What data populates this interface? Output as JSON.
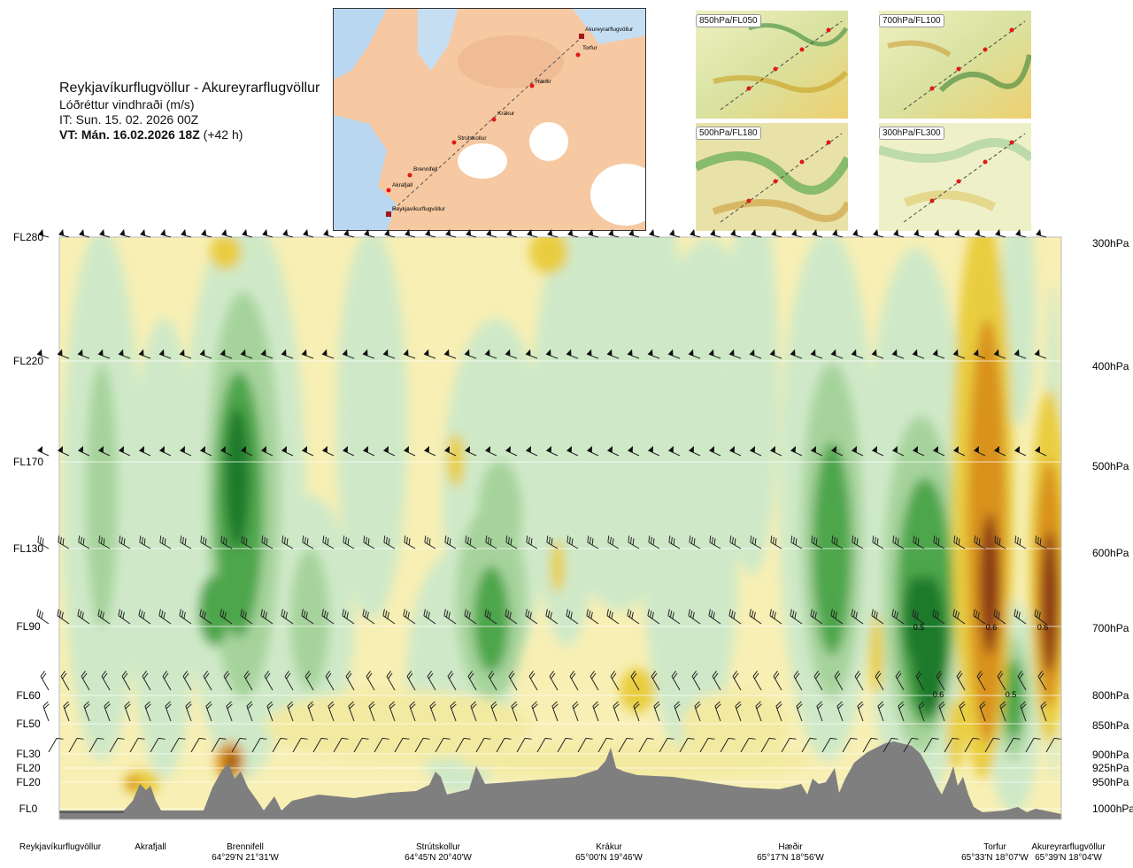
{
  "header": {
    "title": "Reykjavíkurflugvöllur - Akureyrarflugvöllur",
    "subtitle": "Lóðréttur vindhraði (m/s)",
    "it": "IT: Sun. 15. 02. 2026 00Z",
    "vt_bold": "VT: Mán. 16.02.2026 18Z",
    "vt_rest": " (+42 h)"
  },
  "map": {
    "waypoints": [
      "Akureyrarflugvöllur",
      "Torfur",
      "Hæðir",
      "Krákur",
      "Strútskollur",
      "Brennifell",
      "Akrafjall",
      "Reykjavíkurflugvöllur"
    ]
  },
  "thumbnails": [
    "850hPa/FL050",
    "700hPa/FL100",
    "500hPa/FL180",
    "300hPa/FL300"
  ],
  "colors": {
    "pos_light": "#f3eaa2",
    "pos_mid": "#e9cd3f",
    "pos_orange": "#d9921a",
    "pos_brown": "#8a3712",
    "neg_light": "#cfe9c8",
    "neg_mid": "#a6d39b",
    "neg_dark": "#4ea64b",
    "neg_deep": "#1c7a2a",
    "terrain": "#7f7f7f"
  },
  "chart_data": {
    "type": "heatmap",
    "title": "Lóðréttur vindhraði (m/s)",
    "left_axis_labels": [
      "FL280",
      "FL220",
      "FL170",
      "FL130",
      "FL90",
      "FL60",
      "FL50",
      "FL30",
      "FL20",
      "FL20",
      "FL0"
    ],
    "right_axis_labels": [
      "300hPa",
      "400hPa",
      "500hPa",
      "600hPa",
      "700hPa",
      "800hPa",
      "850hPa",
      "900hPa",
      "925hPa",
      "950hPa",
      "1000hPa"
    ],
    "waypoints": [
      {
        "name": "Reykjavíkurflugvöllur",
        "coord": ""
      },
      {
        "name": "Akrafjall",
        "coord": ""
      },
      {
        "name": "Brennifell",
        "coord": "64°29'N 21°31'W"
      },
      {
        "name": "Strútskollur",
        "coord": "64°45'N 20°40'W"
      },
      {
        "name": "Krákur",
        "coord": "65°00'N 19°46'W"
      },
      {
        "name": "Hæðir",
        "coord": "65°17'N 18°56'W"
      },
      {
        "name": "Torfur",
        "coord": "65°33'N 18°07'W"
      },
      {
        "name": "Akureyrarflugvöllur",
        "coord": "65°39'N 18°04'W"
      }
    ],
    "contour_labels": [
      "0.5",
      "0.6",
      "0.6",
      "0.6",
      "0.5"
    ]
  }
}
